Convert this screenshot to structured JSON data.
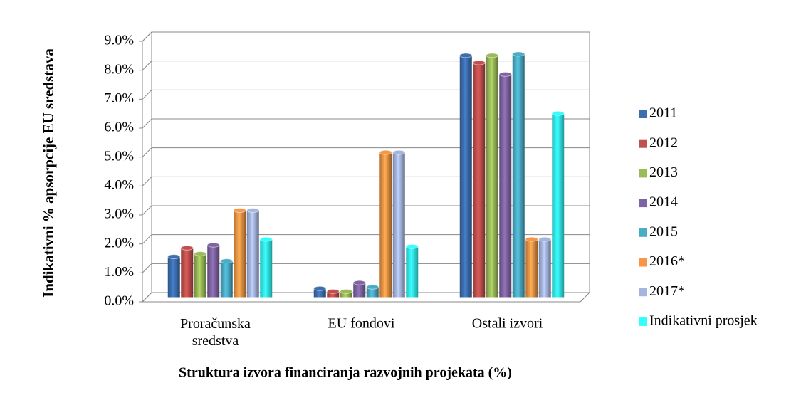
{
  "chart_data": {
    "type": "bar3d",
    "x_label": "Struktura izvora financiranja razvojnih projekata (%)",
    "y_label": "Indikativni % apsorpcije EU sredstava",
    "categories": [
      "Proračunska sredstva",
      "EU fondovi",
      "Ostali izvori"
    ],
    "series": [
      {
        "name": "2011",
        "color": "#3d6fb0",
        "values": [
          1.4,
          0.3,
          8.35
        ]
      },
      {
        "name": "2012",
        "color": "#c0504d",
        "values": [
          1.7,
          0.2,
          8.1
        ]
      },
      {
        "name": "2013",
        "color": "#9bbb59",
        "values": [
          1.5,
          0.2,
          8.35
        ]
      },
      {
        "name": "2014",
        "color": "#8064a2",
        "values": [
          1.8,
          0.5,
          7.7
        ]
      },
      {
        "name": "2015",
        "color": "#4bacc6",
        "values": [
          1.25,
          0.35,
          8.4
        ]
      },
      {
        "name": "2016*",
        "color": "#f79646",
        "values": [
          3.0,
          5.0,
          2.0
        ]
      },
      {
        "name": "2017*",
        "color": "#a5b6dd",
        "values": [
          3.0,
          5.0,
          2.0
        ]
      },
      {
        "name": "Indikativni prosjek",
        "color": "#33ffff",
        "values": [
          2.0,
          1.75,
          6.35
        ]
      }
    ],
    "ylim": [
      0,
      9
    ],
    "yticks": [
      {
        "value": 0,
        "label": "0.0%"
      },
      {
        "value": 1,
        "label": "1.0%"
      },
      {
        "value": 2,
        "label": "2.0%"
      },
      {
        "value": 3,
        "label": "3.0%"
      },
      {
        "value": 4,
        "label": "4.0%"
      },
      {
        "value": 5,
        "label": "5.0%"
      },
      {
        "value": 6,
        "label": "6.0%"
      },
      {
        "value": 7,
        "label": "7.0%"
      },
      {
        "value": 8,
        "label": "8.0%"
      },
      {
        "value": 9,
        "label": "9.0%"
      }
    ],
    "grid": true,
    "legend": "right"
  }
}
